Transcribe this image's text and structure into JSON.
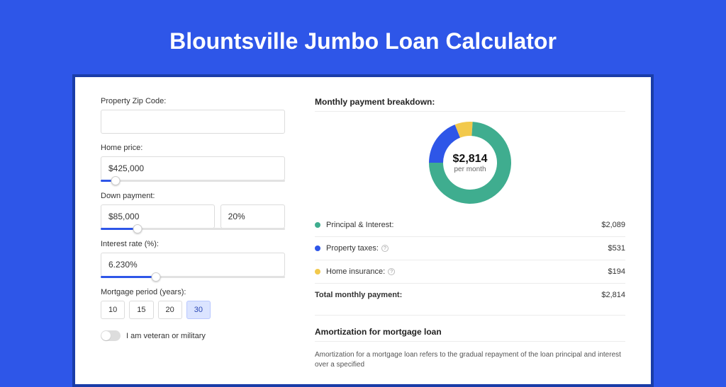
{
  "page_title": "Blountsville Jumbo Loan Calculator",
  "colors": {
    "bg": "#2e56e8",
    "outer_border": "#1a3da8",
    "card_bg": "#ffffff",
    "text": "#333333",
    "input_border": "#dcdcdc",
    "slider_fill": "#2e56e8",
    "period_selected_bg": "#dbe4ff",
    "divider": "#ececec"
  },
  "form": {
    "zip_label": "Property Zip Code:",
    "zip_value": "",
    "home_price_label": "Home price:",
    "home_price_value": "$425,000",
    "home_price_slider_pct": 8,
    "down_payment_label": "Down payment:",
    "down_payment_amount": "$85,000",
    "down_payment_pct": "20%",
    "down_payment_slider_pct": 20,
    "interest_label": "Interest rate (%):",
    "interest_value": "6.230%",
    "interest_slider_pct": 30,
    "period_label": "Mortgage period (years):",
    "periods": [
      "10",
      "15",
      "20",
      "30"
    ],
    "period_selected": "30",
    "veteran_label": "I am veteran or military",
    "veteran_on": false
  },
  "breakdown": {
    "title": "Monthly payment breakdown:",
    "donut": {
      "total": "$2,814",
      "sub": "per month",
      "slices": [
        {
          "label": "Principal & Interest:",
          "value": "$2,089",
          "color": "#3fad8f",
          "pct": 74
        },
        {
          "label": "Property taxes:",
          "value": "$531",
          "color": "#2e56e8",
          "pct": 19,
          "info": true
        },
        {
          "label": "Home insurance:",
          "value": "$194",
          "color": "#f2c94c",
          "pct": 7,
          "info": true
        }
      ]
    },
    "total_label": "Total monthly payment:",
    "total_value": "$2,814"
  },
  "amortization": {
    "title": "Amortization for mortgage loan",
    "text": "Amortization for a mortgage loan refers to the gradual repayment of the loan principal and interest over a specified"
  }
}
